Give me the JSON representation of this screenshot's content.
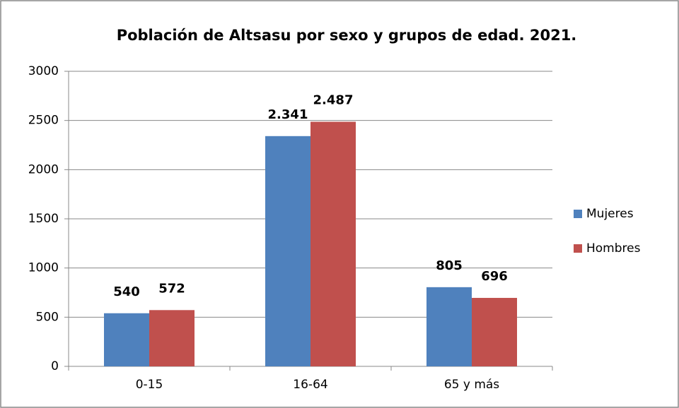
{
  "chart_data": {
    "type": "bar",
    "title": "Población de Altsasu por sexo y grupos de edad. 2021.",
    "categories": [
      "0-15",
      "16-64",
      "65 y más"
    ],
    "series": [
      {
        "name": "Mujeres",
        "color": "#4f81bd",
        "values": [
          540,
          2341,
          805
        ],
        "value_labels": [
          "540",
          "2.341",
          "805"
        ]
      },
      {
        "name": "Hombres",
        "color": "#c0504d",
        "values": [
          572,
          2487,
          696
        ],
        "value_labels": [
          "572",
          "2.487",
          "696"
        ]
      }
    ],
    "ylim": [
      0,
      3000
    ],
    "yticks": [
      0,
      500,
      1000,
      1500,
      2000,
      2500,
      3000
    ],
    "grid": true,
    "legend": "right"
  }
}
